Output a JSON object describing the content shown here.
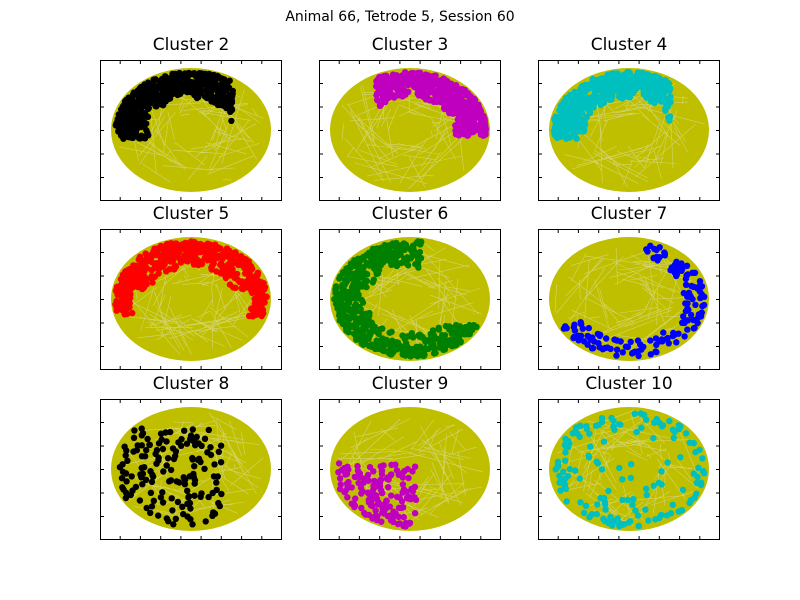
{
  "figure": {
    "suptitle": "Animal 66, Tetrode 5, Session 60"
  },
  "colors": {
    "track": "#bfbf00",
    "frame": "#000000"
  },
  "chart_data": [
    {
      "type": "scatter",
      "title": "Cluster 2",
      "color": "#000000",
      "region": "upper-left",
      "density": "high",
      "xticks": [],
      "yticks": []
    },
    {
      "type": "scatter",
      "title": "Cluster 3",
      "color": "#bf00bf",
      "region": "upper-right",
      "density": "high",
      "xticks": [],
      "yticks": []
    },
    {
      "type": "scatter",
      "title": "Cluster 4",
      "color": "#00bfbf",
      "region": "upper-left",
      "density": "high",
      "xticks": [],
      "yticks": []
    },
    {
      "type": "scatter",
      "title": "Cluster 5",
      "color": "#ff0000",
      "region": "top",
      "density": "high",
      "xticks": [],
      "yticks": []
    },
    {
      "type": "scatter",
      "title": "Cluster 6",
      "color": "#008000",
      "region": "left-bottom",
      "density": "high",
      "xticks": [],
      "yticks": []
    },
    {
      "type": "scatter",
      "title": "Cluster 7",
      "color": "#0000ff",
      "region": "right-bottom",
      "density": "medium",
      "xticks": [],
      "yticks": []
    },
    {
      "type": "scatter",
      "title": "Cluster 8",
      "color": "#000000",
      "region": "left-center",
      "density": "medium",
      "xticks": [],
      "yticks": []
    },
    {
      "type": "scatter",
      "title": "Cluster 9",
      "color": "#bf00bf",
      "region": "lower-left",
      "density": "medium",
      "xticks": [],
      "yticks": []
    },
    {
      "type": "scatter",
      "title": "Cluster 10",
      "color": "#00bfbf",
      "region": "scattered",
      "density": "medium",
      "xticks": [],
      "yticks": []
    }
  ]
}
